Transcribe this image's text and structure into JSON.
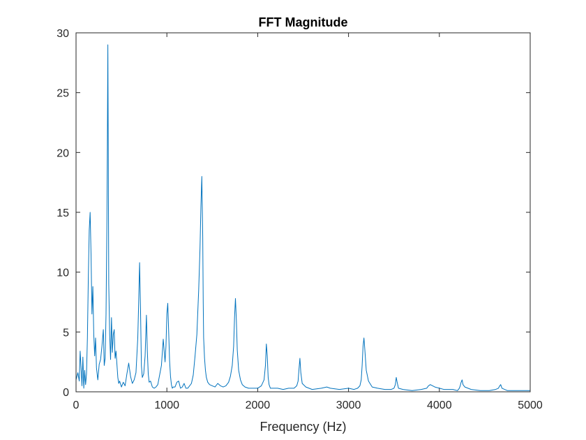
{
  "chart_data": {
    "type": "line",
    "title": "FFT Magnitude",
    "xlabel": "Frequency (Hz)",
    "ylabel": "",
    "xlim": [
      0,
      5000
    ],
    "ylim": [
      0,
      30
    ],
    "xticks": [
      0,
      1000,
      2000,
      3000,
      4000,
      5000
    ],
    "yticks": [
      0,
      5,
      10,
      15,
      20,
      25,
      30
    ],
    "grid": false,
    "box": true,
    "line_color": "#0072BD",
    "series": [
      {
        "x": [
          0,
          20,
          35,
          45,
          55,
          65,
          75,
          85,
          95,
          105,
          115,
          125,
          135,
          145,
          155,
          165,
          175,
          185,
          195,
          205,
          215,
          225,
          240,
          255,
          270,
          285,
          300,
          310,
          320,
          330,
          340,
          345,
          350,
          355,
          360,
          370,
          380,
          390,
          400,
          410,
          420,
          430,
          440,
          450,
          460,
          470,
          480,
          500,
          520,
          540,
          560,
          580,
          600,
          620,
          640,
          660,
          680,
          690,
          700,
          710,
          720,
          730,
          745,
          760,
          775,
          785,
          795,
          805,
          820,
          840,
          860,
          880,
          900,
          920,
          940,
          960,
          980,
          990,
          1000,
          1010,
          1020,
          1030,
          1040,
          1050,
          1060,
          1070,
          1090,
          1110,
          1130,
          1150,
          1170,
          1190,
          1210,
          1230,
          1250,
          1270,
          1290,
          1310,
          1330,
          1350,
          1365,
          1375,
          1385,
          1395,
          1400,
          1405,
          1415,
          1425,
          1435,
          1450,
          1470,
          1500,
          1530,
          1560,
          1590,
          1620,
          1650,
          1680,
          1700,
          1720,
          1735,
          1745,
          1755,
          1765,
          1775,
          1790,
          1810,
          1830,
          1860,
          1900,
          1950,
          2000,
          2040,
          2070,
          2085,
          2095,
          2105,
          2115,
          2125,
          2140,
          2170,
          2220,
          2280,
          2340,
          2400,
          2430,
          2445,
          2455,
          2465,
          2475,
          2490,
          2530,
          2600,
          2700,
          2760,
          2800,
          2900,
          3000,
          3060,
          3100,
          3125,
          3140,
          3150,
          3160,
          3170,
          3180,
          3195,
          3220,
          3260,
          3320,
          3400,
          3470,
          3500,
          3515,
          3525,
          3535,
          3550,
          3600,
          3700,
          3800,
          3860,
          3880,
          3900,
          3950,
          4050,
          4150,
          4200,
          4220,
          4230,
          4240,
          4250,
          4260,
          4280,
          4350,
          4450,
          4550,
          4620,
          4650,
          4665,
          4675,
          4690,
          4750,
          4850,
          4950,
          5000
        ],
        "y": [
          1.0,
          1.6,
          0.9,
          3.4,
          2.0,
          0.5,
          2.9,
          0.3,
          1.8,
          0.6,
          1.5,
          4.5,
          9.5,
          13.5,
          15.0,
          11.5,
          6.5,
          8.8,
          4.8,
          3.0,
          4.5,
          2.0,
          1.0,
          2.3,
          2.7,
          3.8,
          5.2,
          2.2,
          2.8,
          6.5,
          14.5,
          20.5,
          29.0,
          20.0,
          9.0,
          4.8,
          2.7,
          6.2,
          3.3,
          4.8,
          5.2,
          2.8,
          3.4,
          2.3,
          1.2,
          0.7,
          0.9,
          0.4,
          0.8,
          0.5,
          1.5,
          2.4,
          1.3,
          0.7,
          1.0,
          1.6,
          4.5,
          7.5,
          10.8,
          7.0,
          2.2,
          1.2,
          1.5,
          3.0,
          6.4,
          3.4,
          1.5,
          0.8,
          0.9,
          0.4,
          0.3,
          0.4,
          0.6,
          1.4,
          2.2,
          4.4,
          2.5,
          3.8,
          6.5,
          7.4,
          5.0,
          2.6,
          1.3,
          0.6,
          0.3,
          0.4,
          0.4,
          0.8,
          0.9,
          0.3,
          0.4,
          0.7,
          0.3,
          0.3,
          0.5,
          0.7,
          1.4,
          3.0,
          4.8,
          8.5,
          12.0,
          15.5,
          18.0,
          13.0,
          7.5,
          4.5,
          2.8,
          1.8,
          1.2,
          0.8,
          0.6,
          0.5,
          0.4,
          0.7,
          0.5,
          0.4,
          0.5,
          0.8,
          1.3,
          2.2,
          3.8,
          6.2,
          7.8,
          6.0,
          3.5,
          1.8,
          1.0,
          0.6,
          0.4,
          0.3,
          0.3,
          0.3,
          0.5,
          1.0,
          2.2,
          4.0,
          3.0,
          1.2,
          0.6,
          0.3,
          0.3,
          0.3,
          0.2,
          0.3,
          0.3,
          0.5,
          0.9,
          1.9,
          2.8,
          1.6,
          0.7,
          0.4,
          0.2,
          0.3,
          0.4,
          0.3,
          0.2,
          0.3,
          0.2,
          0.3,
          0.5,
          1.0,
          2.2,
          3.8,
          4.5,
          3.5,
          1.8,
          0.9,
          0.4,
          0.3,
          0.2,
          0.2,
          0.3,
          0.6,
          1.2,
          0.8,
          0.3,
          0.2,
          0.1,
          0.2,
          0.3,
          0.5,
          0.6,
          0.4,
          0.2,
          0.2,
          0.1,
          0.3,
          0.5,
          0.8,
          1.0,
          0.6,
          0.4,
          0.2,
          0.1,
          0.1,
          0.2,
          0.3,
          0.5,
          0.6,
          0.3,
          0.1,
          0.1,
          0.1,
          0.1
        ]
      }
    ]
  }
}
